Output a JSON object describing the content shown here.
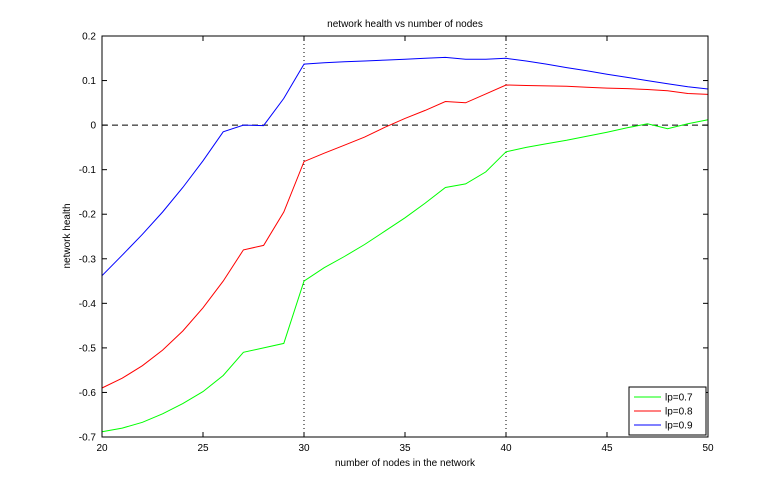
{
  "chart_data": {
    "type": "line",
    "title": "network health vs number of nodes",
    "xlabel": "number of nodes in the network",
    "ylabel": "network health",
    "xlim": [
      20,
      50
    ],
    "ylim": [
      -0.7,
      0.2
    ],
    "xticks": [
      20,
      25,
      30,
      35,
      40,
      45,
      50
    ],
    "yticks": [
      -0.7,
      -0.6,
      -0.5,
      -0.4,
      -0.3,
      -0.2,
      -0.1,
      0,
      0.1,
      0.2
    ],
    "xtick_labels": [
      "20",
      "25",
      "30",
      "35",
      "40",
      "45",
      "50"
    ],
    "ytick_labels": [
      "-0.7",
      "-0.6",
      "-0.5",
      "-0.4",
      "-0.3",
      "-0.2",
      "-0.1",
      "0",
      "0.1",
      "0.2"
    ],
    "reference_lines": {
      "horizontal_dashed_y": 0,
      "vertical_dotted_x": [
        30,
        40
      ]
    },
    "legend_position": "bottom-right",
    "series": [
      {
        "name": "lp=0.7",
        "color": "#00ff00",
        "x": [
          20,
          21,
          22,
          23,
          24,
          25,
          26,
          27,
          28,
          29,
          30,
          31,
          32,
          33,
          34,
          35,
          36,
          37,
          38,
          39,
          40,
          41,
          42,
          43,
          44,
          45,
          46,
          47,
          48,
          49,
          50
        ],
        "values": [
          -0.688,
          -0.68,
          -0.667,
          -0.648,
          -0.625,
          -0.598,
          -0.562,
          -0.51,
          -0.5,
          -0.49,
          -0.35,
          -0.32,
          -0.295,
          -0.268,
          -0.238,
          -0.208,
          -0.175,
          -0.14,
          -0.132,
          -0.105,
          -0.06,
          -0.05,
          -0.042,
          -0.034,
          -0.025,
          -0.016,
          -0.006,
          0.003,
          -0.008,
          0.003,
          0.012
        ]
      },
      {
        "name": "lp=0.8",
        "color": "#ff0000",
        "x": [
          20,
          21,
          22,
          23,
          24,
          25,
          26,
          27,
          28,
          29,
          30,
          31,
          32,
          33,
          34,
          35,
          36,
          37,
          38,
          39,
          40,
          41,
          42,
          43,
          44,
          45,
          46,
          47,
          48,
          49,
          50
        ],
        "values": [
          -0.59,
          -0.568,
          -0.54,
          -0.505,
          -0.462,
          -0.41,
          -0.35,
          -0.28,
          -0.27,
          -0.195,
          -0.082,
          -0.063,
          -0.045,
          -0.027,
          -0.005,
          0.015,
          0.033,
          0.053,
          0.05,
          0.07,
          0.09,
          0.089,
          0.088,
          0.087,
          0.085,
          0.083,
          0.082,
          0.08,
          0.077,
          0.071,
          0.069
        ]
      },
      {
        "name": "lp=0.9",
        "color": "#0000ff",
        "x": [
          20,
          21,
          22,
          23,
          24,
          25,
          26,
          27,
          28,
          29,
          30,
          31,
          32,
          33,
          34,
          35,
          36,
          37,
          38,
          39,
          40,
          41,
          42,
          43,
          44,
          45,
          46,
          47,
          48,
          49,
          50
        ],
        "values": [
          -0.338,
          -0.292,
          -0.245,
          -0.195,
          -0.14,
          -0.08,
          -0.015,
          0.0,
          -0.001,
          0.06,
          0.137,
          0.14,
          0.142,
          0.144,
          0.146,
          0.148,
          0.15,
          0.152,
          0.148,
          0.148,
          0.15,
          0.144,
          0.137,
          0.129,
          0.122,
          0.114,
          0.107,
          0.1,
          0.093,
          0.086,
          0.081
        ]
      }
    ]
  }
}
